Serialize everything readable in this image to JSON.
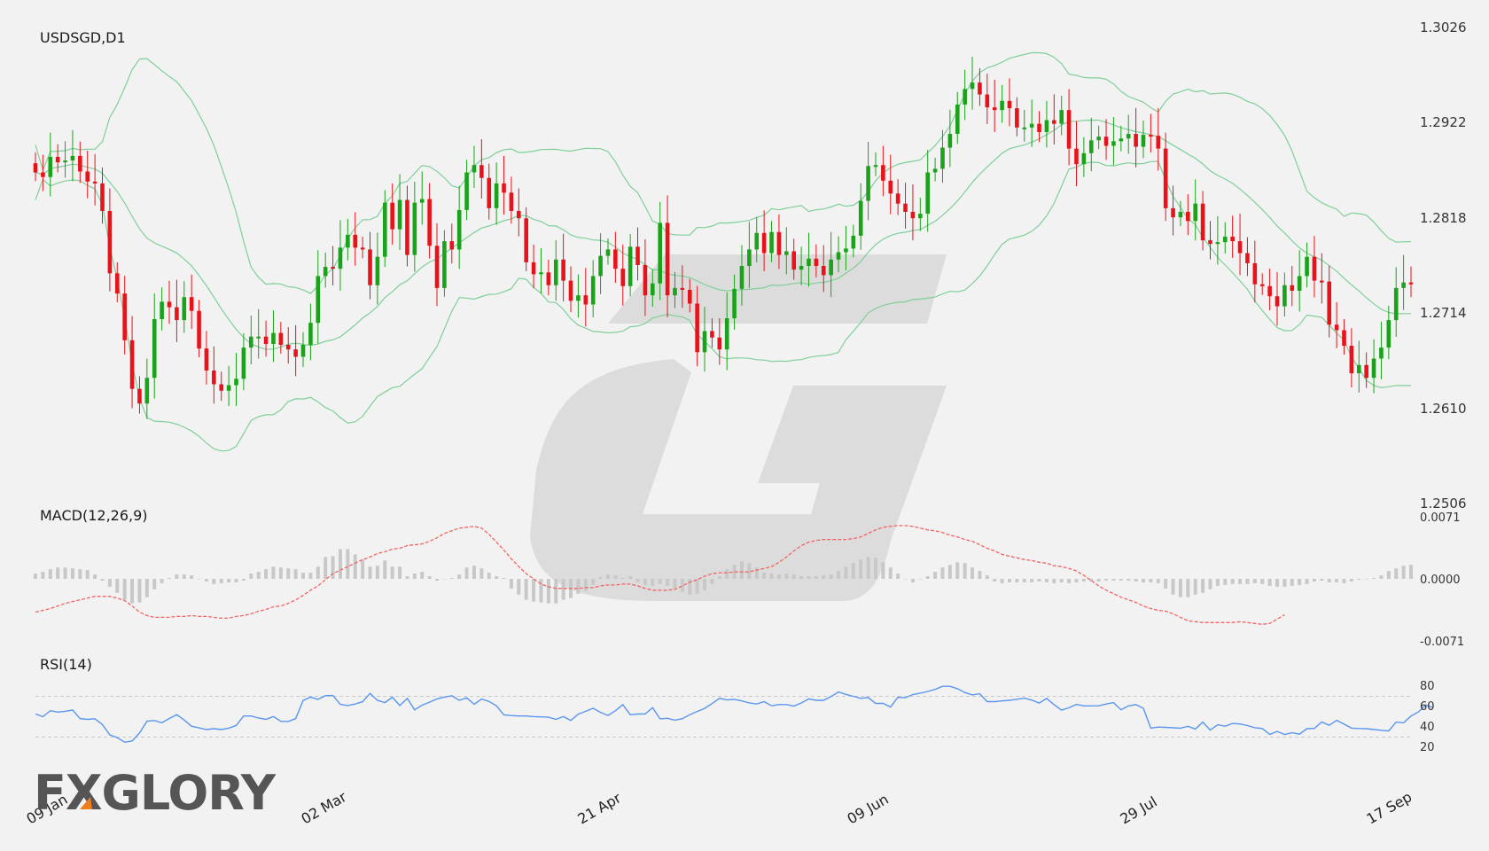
{
  "colors": {
    "up": "#1aa31a",
    "down": "#e8131a",
    "band": "#7fcf9a",
    "macd_signal": "#f06464",
    "macd_hist": "#c8c8c8",
    "rsi": "#5a96f0",
    "watermark": "#dcdcdc",
    "logo": "#555555",
    "logo_accent": "#f07d19"
  },
  "logo": {
    "text": "FXGLORY"
  },
  "chart_data": {
    "type": "candlestick",
    "main": {
      "title": "USDSGD,D1",
      "y_ticks": [
        "1.3026",
        "1.2922",
        "1.2818",
        "1.2714",
        "1.2610",
        "1.2506"
      ],
      "ylim": [
        1.2506,
        1.3026
      ],
      "x_ticks": [
        "09 Jan",
        "02 Mar",
        "21 Apr",
        "09 Jun",
        "29 Jul",
        "17 Sep"
      ],
      "close": [
        1.2867,
        1.2862,
        1.2884,
        1.2878,
        1.288,
        1.2885,
        1.2868,
        1.2857,
        1.2855,
        1.2825,
        1.2757,
        1.2735,
        1.2684,
        1.2631,
        1.2615,
        1.2643,
        1.2707,
        1.2726,
        1.272,
        1.2706,
        1.2731,
        1.2716,
        1.2675,
        1.2651,
        1.2636,
        1.2629,
        1.2635,
        1.2642,
        1.2676,
        1.2688,
        1.2688,
        1.268,
        1.2692,
        1.2679,
        1.2674,
        1.2666,
        1.2679,
        1.2703,
        1.2754,
        1.2764,
        1.2762,
        1.2785,
        1.2799,
        1.2785,
        1.2783,
        1.2744,
        1.2775,
        1.2834,
        1.2805,
        1.2837,
        1.2777,
        1.2834,
        1.2838,
        1.2787,
        1.2741,
        1.2792,
        1.2783,
        1.2826,
        1.2867,
        1.2875,
        1.2861,
        1.2828,
        1.2855,
        1.2845,
        1.2825,
        1.2817,
        1.2769,
        1.2756,
        1.2758,
        1.2744,
        1.2772,
        1.2749,
        1.2727,
        1.2733,
        1.2723,
        1.2754,
        1.2776,
        1.2783,
        1.2762,
        1.2743,
        1.2786,
        1.2766,
        1.2733,
        1.2746,
        1.2812,
        1.2733,
        1.2741,
        1.2739,
        1.2724,
        1.2671,
        1.2694,
        1.2687,
        1.2674,
        1.2708,
        1.274,
        1.2765,
        1.2783,
        1.2801,
        1.2779,
        1.2802,
        1.2777,
        1.2781,
        1.2761,
        1.2765,
        1.2773,
        1.2765,
        1.2755,
        1.2772,
        1.278,
        1.2784,
        1.2798,
        1.2836,
        1.2874,
        1.2875,
        1.2858,
        1.2844,
        1.2833,
        1.2824,
        1.2817,
        1.2822,
        1.2867,
        1.2871,
        1.2894,
        1.2909,
        1.2941,
        1.2958,
        1.2965,
        1.2952,
        1.2938,
        1.2935,
        1.2945,
        1.2937,
        1.2916,
        1.2916,
        1.292,
        1.2911,
        1.2924,
        1.292,
        1.2935,
        1.2893,
        1.2876,
        1.2888,
        1.2902,
        1.2906,
        1.2896,
        1.2901,
        1.2904,
        1.2909,
        1.2895,
        1.2908,
        1.2907,
        1.2893,
        1.2828,
        1.2818,
        1.2824,
        1.2814,
        1.2833,
        1.2793,
        1.2789,
        1.2791,
        1.2797,
        1.2792,
        1.2779,
        1.2768,
        1.2745,
        1.2743,
        1.2732,
        1.2721,
        1.2744,
        1.2738,
        1.2754,
        1.2775,
        1.2749,
        1.2748,
        1.2701,
        1.2695,
        1.2678,
        1.2648,
        1.2657,
        1.2643,
        1.2664,
        1.2676,
        1.2706,
        1.2741,
        1.2747,
        1.2745
      ]
    },
    "macd": {
      "title": "MACD(12,26,9)",
      "y_ticks": [
        "0.0071",
        "0.0000",
        "-0.0071"
      ],
      "ylim": [
        -0.0071,
        0.0071
      ],
      "series": [
        {
          "role": "histogram",
          "values": [
            0.0006,
            0.0008,
            0.0011,
            0.0013,
            0.0013,
            0.0012,
            0.0011,
            0.001,
            0.0005,
            -0.0002,
            -0.0009,
            -0.0016,
            -0.0024,
            -0.0028,
            -0.0027,
            -0.0021,
            -0.0012,
            -0.0005,
            0.0001,
            0.0005,
            0.0005,
            0.0004,
            0.0,
            -0.0003,
            -0.0006,
            -0.0005,
            -0.0004,
            -0.0004,
            -0.0002,
            0.0006,
            0.0008,
            0.0011,
            0.0014,
            0.0013,
            0.0012,
            0.0011,
            0.0007,
            0.0007,
            0.0014,
            0.0025,
            0.0026,
            0.0034,
            0.0034,
            0.0028,
            0.0022,
            0.0014,
            0.0015,
            0.0021,
            0.0014,
            0.0014,
            0.0003,
            0.0006,
            0.0008,
            0.0003,
            -0.0002,
            0.0,
            0.0001,
            0.0005,
            0.0013,
            0.0015,
            0.0012,
            0.0007,
            0.0003,
            0.0001,
            -0.0011,
            -0.0018,
            -0.0024,
            -0.0026,
            -0.0027,
            -0.0028,
            -0.0028,
            -0.0024,
            -0.0022,
            -0.0017,
            -0.0014,
            -0.0007,
            0.0002,
            0.0005,
            0.0004,
            0.0001,
            0.0003,
            -0.0004,
            -0.0007,
            -0.0008,
            -0.0006,
            -0.0008,
            -0.0011,
            -0.0015,
            -0.0018,
            -0.0017,
            -0.0013,
            -0.0006,
            0.0003,
            0.0011,
            0.0016,
            0.002,
            0.0018,
            0.0013,
            0.0007,
            0.0006,
            0.0005,
            0.0006,
            0.0005,
            0.0003,
            0.0003,
            0.0003,
            0.0004,
            0.0005,
            0.0009,
            0.0014,
            0.0018,
            0.0022,
            0.0025,
            0.0024,
            0.0019,
            0.0013,
            0.0006,
            0.0,
            -0.0004,
            0.0,
            0.0003,
            0.0008,
            0.0013,
            0.0016,
            0.0019,
            0.0018,
            0.0013,
            0.0009,
            0.0004,
            -0.0003,
            -0.0005,
            -0.0004,
            -0.0004,
            -0.0004,
            -0.0004,
            -0.0003,
            -0.0004,
            -0.0005,
            -0.0004,
            -0.0005,
            -0.0004,
            -0.0003,
            -0.0003,
            -0.0003,
            -0.0002,
            -0.0002,
            -0.0002,
            -0.0002,
            -0.0003,
            -0.0004,
            -0.0004,
            -0.0005,
            -0.0011,
            -0.0018,
            -0.0021,
            -0.0021,
            -0.0018,
            -0.0016,
            -0.0012,
            -0.0008,
            -0.0007,
            -0.0006,
            -0.0006,
            -0.0006,
            -0.0005,
            -0.0006,
            -0.0008,
            -0.0009,
            -0.0009,
            -0.0008,
            -0.0007,
            -0.0006,
            -0.0003,
            -0.0002,
            -0.0004,
            -0.0004,
            -0.0005,
            -0.0003,
            -0.0001,
            0.0,
            0.0001,
            0.0004,
            0.0009,
            0.0012,
            0.0015,
            0.0016
          ]
        },
        {
          "role": "signal",
          "values": [
            -0.0038,
            -0.0036,
            -0.0034,
            -0.0031,
            -0.0028,
            -0.0026,
            -0.0024,
            -0.0022,
            -0.002,
            -0.002,
            -0.002,
            -0.0022,
            -0.0025,
            -0.0031,
            -0.0038,
            -0.0042,
            -0.0044,
            -0.0044,
            -0.0044,
            -0.0043,
            -0.0043,
            -0.0042,
            -0.0043,
            -0.0043,
            -0.0044,
            -0.0045,
            -0.0045,
            -0.0043,
            -0.0042,
            -0.004,
            -0.0037,
            -0.0035,
            -0.0032,
            -0.0031,
            -0.0028,
            -0.0024,
            -0.0019,
            -0.0013,
            -0.0008,
            -0.0001,
            0.0006,
            0.001,
            0.0014,
            0.0018,
            0.0022,
            0.0025,
            0.0029,
            0.0031,
            0.0034,
            0.0035,
            0.0038,
            0.0039,
            0.004,
            0.0043,
            0.0047,
            0.0052,
            0.0055,
            0.0058,
            0.0059,
            0.006,
            0.0058,
            0.0051,
            0.0042,
            0.0033,
            0.0023,
            0.0014,
            0.0006,
            0.0,
            -0.0006,
            -0.0009,
            -0.0011,
            -0.0011,
            -0.0011,
            -0.0011,
            -0.001,
            -0.001,
            -0.0008,
            -0.0007,
            -0.0007,
            -0.0006,
            -0.0006,
            -0.0008,
            -0.0011,
            -0.0013,
            -0.0013,
            -0.0013,
            -0.0012,
            -0.0008,
            -0.0004,
            -0.0001,
            0.0003,
            0.0006,
            0.0007,
            0.0007,
            0.0008,
            0.0008,
            0.0008,
            0.001,
            0.0012,
            0.0014,
            0.0019,
            0.0025,
            0.0032,
            0.0038,
            0.0042,
            0.0044,
            0.0045,
            0.0045,
            0.0045,
            0.0045,
            0.0046,
            0.0048,
            0.0052,
            0.0056,
            0.0059,
            0.006,
            0.0061,
            0.0061,
            0.006,
            0.0058,
            0.0056,
            0.0055,
            0.0053,
            0.005,
            0.0048,
            0.0045,
            0.0043,
            0.0039,
            0.0035,
            0.0032,
            0.0028,
            0.0026,
            0.0024,
            0.0022,
            0.0021,
            0.0019,
            0.0018,
            0.0015,
            0.0014,
            0.0012,
            0.0009,
            0.0004,
            -0.0002,
            -0.0008,
            -0.0013,
            -0.0017,
            -0.0021,
            -0.0024,
            -0.0027,
            -0.0031,
            -0.0034,
            -0.0036,
            -0.0037,
            -0.004,
            -0.0044,
            -0.0048,
            -0.0049,
            -0.005,
            -0.005,
            -0.005,
            -0.005,
            -0.005,
            -0.0049,
            -0.005,
            -0.0051,
            -0.0052,
            -0.0051,
            -0.0046,
            -0.0041
          ]
        }
      ]
    },
    "rsi": {
      "title": "RSI(14)",
      "y_ticks": [
        "80",
        "60",
        "40",
        "20"
      ],
      "ylim": [
        0,
        100
      ],
      "levels": [
        70,
        30
      ],
      "values": [
        52.7,
        50.0,
        55.9,
        54.5,
        55.3,
        56.6,
        48.1,
        47.4,
        48.0,
        42.3,
        32.2,
        29.5,
        25.0,
        26.3,
        34.0,
        45.6,
        46.3,
        44.0,
        48.3,
        52.0,
        46.8,
        40.6,
        39.0,
        37.4,
        38.3,
        37.4,
        38.8,
        41.4,
        50.7,
        50.7,
        48.7,
        47.4,
        50.2,
        45.5,
        45.3,
        48.1,
        65.9,
        69.2,
        67.0,
        70.7,
        70.8,
        62.1,
        61.0,
        62.4,
        64.7,
        72.9,
        66.0,
        63.8,
        69.1,
        61.0,
        67.9,
        56.7,
        61.3,
        64.3,
        67.5,
        69.2,
        70.5,
        66.1,
        68.5,
        62.2,
        67.4,
        65.0,
        60.7,
        51.8,
        51.1,
        50.7,
        50.7,
        50.1,
        49.8,
        49.5,
        47.4,
        50.1,
        46.3,
        52.5,
        55.3,
        58.3,
        54.3,
        51.2,
        55.9,
        61.8,
        51.9,
        52.6,
        52.7,
        58.9,
        47.9,
        48.4,
        46.6,
        48.1,
        52.0,
        55.1,
        58.2,
        62.9,
        68.0,
        66.4,
        67.0,
        65.5,
        63.5,
        62.4,
        64.8,
        60.7,
        61.9,
        61.9,
        60.4,
        63.5,
        67.5,
        66.1,
        66.1,
        69.7,
        74.3,
        71.9,
        70.0,
        68.0,
        68.8,
        63.0,
        63.0,
        59.5,
        69.1,
        68.6,
        71.7,
        73.0,
        74.8,
        76.8,
        79.8,
        79.8,
        77.5,
        73.7,
        71.4,
        72.5,
        64.8,
        64.8,
        65.5,
        66.1,
        67.1,
        68.2,
        66.3,
        63.4,
        67.9,
        61.8,
        56.4,
        58.8,
        62.1,
        60.6,
        60.6,
        60.7,
        62.4,
        63.8,
        56.8,
        60.6,
        61.8,
        58.3,
        38.9,
        39.8,
        39.6,
        39.1,
        38.8,
        40.6,
        37.9,
        44.7,
        36.9,
        42.1,
        40.7,
        43.4,
        42.9,
        41.3,
        39.2,
        38.4,
        32.6,
        35.6,
        32.6,
        34.3,
        32.9,
        38.3,
        38.5,
        44.8,
        41.6,
        46.4,
        42.7,
        38.8,
        38.4,
        38.3,
        37.4,
        36.7,
        36.0,
        44.7,
        44.0,
        50.7,
        54.7,
        61.5,
        58.8
      ]
    }
  }
}
